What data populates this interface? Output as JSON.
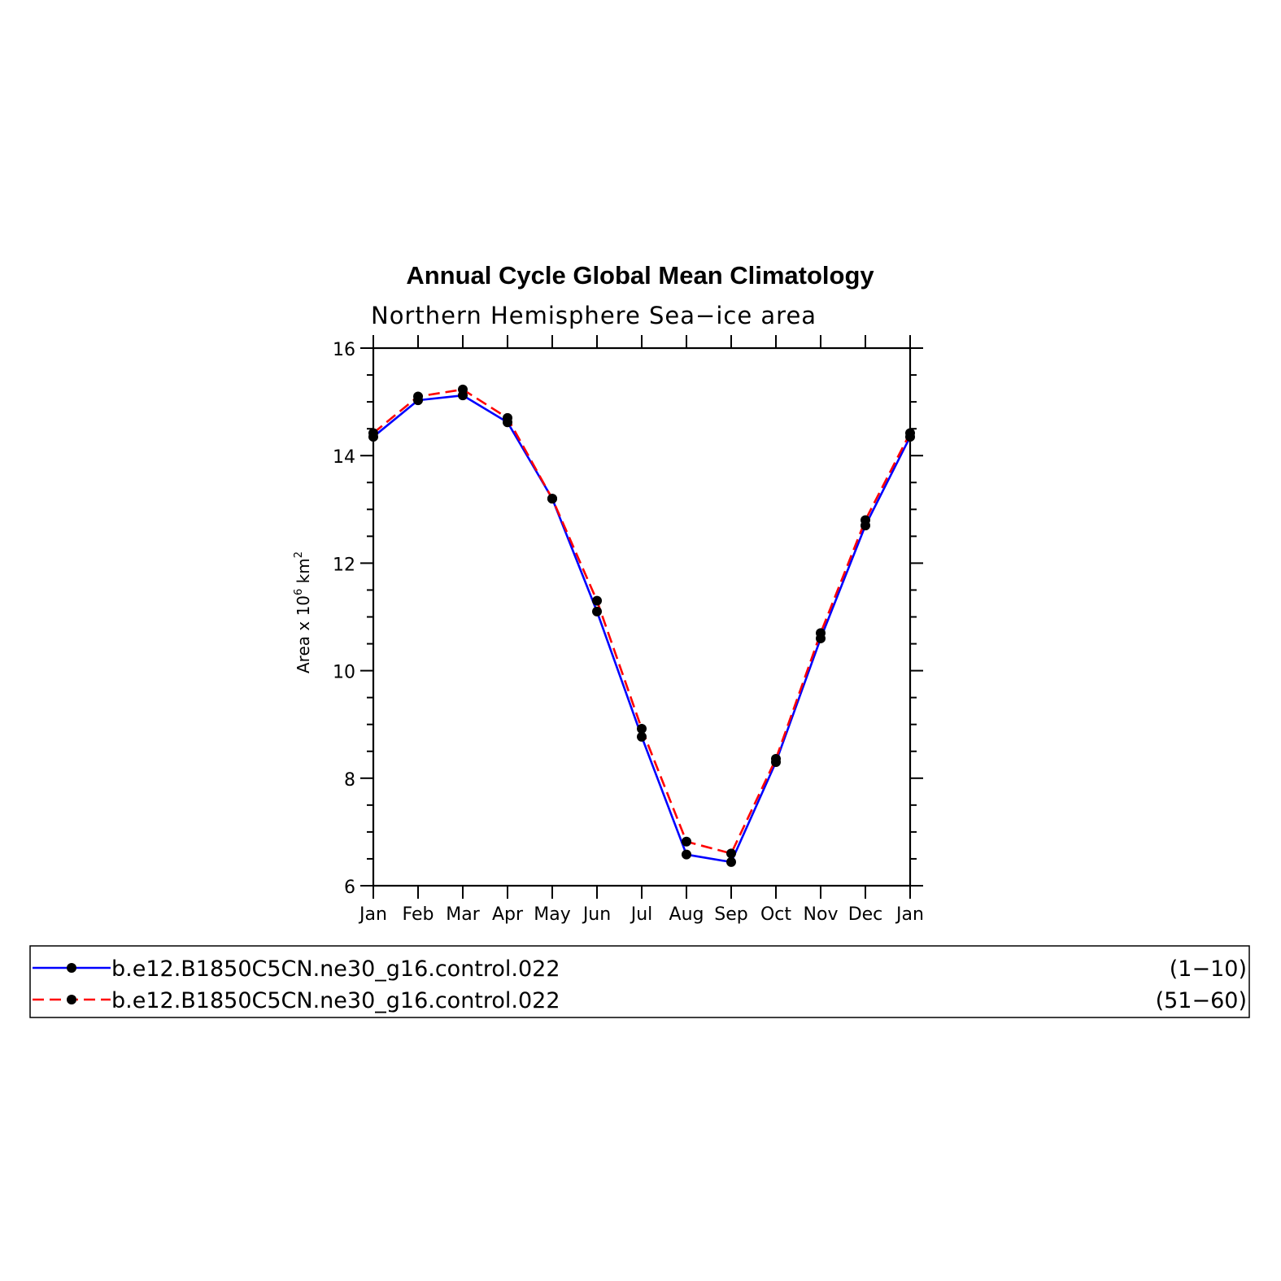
{
  "chart_data": {
    "type": "line",
    "title": "Annual Cycle Global Mean Climatology",
    "subtitle": "Northern Hemisphere Sea−ice area",
    "ylabel": {
      "prefix": "Area x 10",
      "exponent": "6",
      "unit": " km",
      "unit_exponent": "2"
    },
    "xlabel": "",
    "categories": [
      "Jan",
      "Feb",
      "Mar",
      "Apr",
      "May",
      "Jun",
      "Jul",
      "Aug",
      "Sep",
      "Oct",
      "Nov",
      "Dec",
      "Jan"
    ],
    "ylim": [
      6,
      16
    ],
    "yticks": [
      6,
      8,
      10,
      12,
      14,
      16
    ],
    "yminor_step": 0.5,
    "grid": false,
    "legend_position": "bottom",
    "series": [
      {
        "name": "b.e12.B1850C5CN.ne30_g16.control.022",
        "years": "(1−10)",
        "color": "#0000ff",
        "dash": "solid",
        "values": [
          14.35,
          15.03,
          15.12,
          14.62,
          13.2,
          11.1,
          8.77,
          6.58,
          6.44,
          8.3,
          10.6,
          12.7,
          14.35
        ]
      },
      {
        "name": "b.e12.B1850C5CN.ne30_g16.control.022",
        "years": "(51−60)",
        "color": "#ff0000",
        "dash": "dashed",
        "values": [
          14.42,
          15.1,
          15.23,
          14.7,
          13.2,
          11.3,
          8.92,
          6.82,
          6.6,
          8.36,
          10.7,
          12.8,
          14.42
        ]
      }
    ],
    "marker_color": "#000000"
  }
}
